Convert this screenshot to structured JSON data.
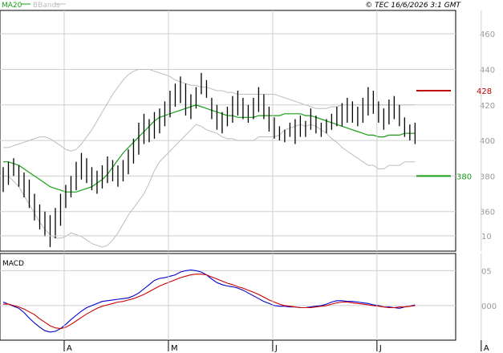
{
  "header": {
    "copyright": "© TEC 16/6/2026 3:1 GMT"
  },
  "legend": {
    "ma_label": "MA20",
    "bbands_label": "BBands",
    "macd_label": "MACD"
  },
  "colors": {
    "price": "#000000",
    "ma20": "#1a9e1a",
    "bbands": "#bdbdbd",
    "resistance": "#c00000",
    "support": "#1a9e1a",
    "macd": "#0000cc",
    "signal": "#cc0000",
    "grid": "#cfcfcf",
    "axis_text": "#9a9a9a"
  },
  "chart_data": [
    {
      "type": "ohlc",
      "title": "",
      "ylim": [
        340,
        470
      ],
      "y_ticks": [
        360,
        380,
        400,
        420,
        440,
        460
      ],
      "x_tick_labels": [
        "A",
        "M",
        "J",
        "J",
        "A"
      ],
      "x_tick_index": [
        12,
        32,
        52,
        72,
        92
      ],
      "levels": [
        {
          "name": "resistance",
          "value": 428,
          "label": "428"
        },
        {
          "name": "support",
          "value": 380,
          "label": "380"
        }
      ],
      "series": [
        {
          "name": "MA20",
          "values": [
            388,
            388,
            387,
            386,
            384,
            382,
            380,
            378,
            376,
            374,
            373,
            372,
            371,
            371,
            371,
            372,
            373,
            374,
            376,
            378,
            381,
            385,
            389,
            393,
            396,
            399,
            402,
            405,
            408,
            411,
            413,
            414,
            415,
            416,
            417,
            418,
            419,
            420,
            419,
            418,
            417,
            416,
            415,
            414,
            414,
            413,
            413,
            413,
            413,
            414,
            414,
            414,
            414,
            414,
            415,
            415,
            415,
            415,
            414,
            414,
            413,
            412,
            411,
            410,
            409,
            408,
            407,
            406,
            405,
            404,
            403,
            403,
            402,
            402,
            403,
            403,
            403,
            404,
            404,
            404
          ]
        },
        {
          "name": "BBands upper",
          "values": [
            396,
            396,
            397,
            398,
            399,
            400,
            401,
            402,
            402,
            401,
            399,
            397,
            395,
            394,
            395,
            398,
            402,
            406,
            411,
            416,
            421,
            426,
            430,
            434,
            437,
            439,
            440,
            440,
            440,
            439,
            438,
            437,
            436,
            434,
            433,
            432,
            431,
            431,
            430,
            430,
            429,
            428,
            428,
            427,
            427,
            426,
            426,
            426,
            426,
            426,
            426,
            426,
            426,
            425,
            424,
            423,
            422,
            421,
            420,
            419,
            418,
            418,
            418,
            419,
            419,
            420,
            420,
            420,
            420,
            420,
            420,
            420,
            420,
            420,
            420,
            420,
            420,
            420,
            420,
            420
          ]
        },
        {
          "name": "BBands lower",
          "values": [
            380,
            380,
            377,
            374,
            369,
            364,
            359,
            354,
            350,
            347,
            345,
            345,
            346,
            348,
            347,
            346,
            344,
            342,
            341,
            340,
            341,
            344,
            348,
            353,
            358,
            362,
            366,
            370,
            376,
            383,
            388,
            391,
            394,
            397,
            400,
            403,
            406,
            409,
            408,
            406,
            405,
            404,
            402,
            401,
            401,
            400,
            400,
            400,
            400,
            402,
            402,
            402,
            402,
            403,
            406,
            407,
            408,
            409,
            408,
            409,
            408,
            406,
            404,
            401,
            399,
            396,
            394,
            392,
            390,
            388,
            386,
            386,
            384,
            384,
            386,
            386,
            386,
            388,
            388,
            388
          ]
        }
      ],
      "ohlc": [
        {
          "x": 0,
          "h": 385,
          "l": 371
        },
        {
          "x": 1,
          "h": 388,
          "l": 375
        },
        {
          "x": 2,
          "h": 390,
          "l": 380
        },
        {
          "x": 3,
          "h": 386,
          "l": 374
        },
        {
          "x": 4,
          "h": 382,
          "l": 368
        },
        {
          "x": 5,
          "h": 378,
          "l": 362
        },
        {
          "x": 6,
          "h": 370,
          "l": 355
        },
        {
          "x": 7,
          "h": 364,
          "l": 350
        },
        {
          "x": 8,
          "h": 360,
          "l": 346
        },
        {
          "x": 9,
          "h": 358,
          "l": 340
        },
        {
          "x": 10,
          "h": 362,
          "l": 345
        },
        {
          "x": 11,
          "h": 370,
          "l": 352
        },
        {
          "x": 12,
          "h": 375,
          "l": 362
        },
        {
          "x": 13,
          "h": 380,
          "l": 368
        },
        {
          "x": 14,
          "h": 388,
          "l": 372
        },
        {
          "x": 15,
          "h": 393,
          "l": 378
        },
        {
          "x": 16,
          "h": 390,
          "l": 376
        },
        {
          "x": 17,
          "h": 385,
          "l": 372
        },
        {
          "x": 18,
          "h": 383,
          "l": 370
        },
        {
          "x": 19,
          "h": 386,
          "l": 373
        },
        {
          "x": 20,
          "h": 391,
          "l": 376
        },
        {
          "x": 21,
          "h": 389,
          "l": 377
        },
        {
          "x": 22,
          "h": 386,
          "l": 374
        },
        {
          "x": 23,
          "h": 389,
          "l": 377
        },
        {
          "x": 24,
          "h": 395,
          "l": 381
        },
        {
          "x": 25,
          "h": 401,
          "l": 387
        },
        {
          "x": 26,
          "h": 410,
          "l": 392
        },
        {
          "x": 27,
          "h": 415,
          "l": 398
        },
        {
          "x": 28,
          "h": 412,
          "l": 399
        },
        {
          "x": 29,
          "h": 416,
          "l": 401
        },
        {
          "x": 30,
          "h": 418,
          "l": 404
        },
        {
          "x": 31,
          "h": 422,
          "l": 408
        },
        {
          "x": 32,
          "h": 428,
          "l": 413
        },
        {
          "x": 33,
          "h": 432,
          "l": 419
        },
        {
          "x": 34,
          "h": 436,
          "l": 421
        },
        {
          "x": 35,
          "h": 432,
          "l": 414
        },
        {
          "x": 36,
          "h": 426,
          "l": 412
        },
        {
          "x": 37,
          "h": 430,
          "l": 418
        },
        {
          "x": 38,
          "h": 438,
          "l": 426
        },
        {
          "x": 39,
          "h": 434,
          "l": 424
        },
        {
          "x": 40,
          "h": 424,
          "l": 412
        },
        {
          "x": 41,
          "h": 420,
          "l": 406
        },
        {
          "x": 42,
          "h": 416,
          "l": 404
        },
        {
          "x": 43,
          "h": 419,
          "l": 408
        },
        {
          "x": 44,
          "h": 425,
          "l": 410
        },
        {
          "x": 45,
          "h": 428,
          "l": 414
        },
        {
          "x": 46,
          "h": 424,
          "l": 412
        },
        {
          "x": 47,
          "h": 420,
          "l": 410
        },
        {
          "x": 48,
          "h": 424,
          "l": 412
        },
        {
          "x": 49,
          "h": 430,
          "l": 416
        },
        {
          "x": 50,
          "h": 426,
          "l": 412
        },
        {
          "x": 51,
          "h": 419,
          "l": 405
        },
        {
          "x": 52,
          "h": 413,
          "l": 401
        },
        {
          "x": 53,
          "h": 408,
          "l": 400
        },
        {
          "x": 54,
          "h": 406,
          "l": 399
        },
        {
          "x": 55,
          "h": 410,
          "l": 402
        },
        {
          "x": 56,
          "h": 412,
          "l": 398
        },
        {
          "x": 57,
          "h": 414,
          "l": 402
        },
        {
          "x": 58,
          "h": 411,
          "l": 402
        },
        {
          "x": 59,
          "h": 418,
          "l": 406
        },
        {
          "x": 60,
          "h": 414,
          "l": 404
        },
        {
          "x": 61,
          "h": 410,
          "l": 402
        },
        {
          "x": 62,
          "h": 412,
          "l": 404
        },
        {
          "x": 63,
          "h": 415,
          "l": 406
        },
        {
          "x": 64,
          "h": 419,
          "l": 408
        },
        {
          "x": 65,
          "h": 421,
          "l": 408
        },
        {
          "x": 66,
          "h": 424,
          "l": 410
        },
        {
          "x": 67,
          "h": 422,
          "l": 410
        },
        {
          "x": 68,
          "h": 419,
          "l": 408
        },
        {
          "x": 69,
          "h": 424,
          "l": 410
        },
        {
          "x": 70,
          "h": 430,
          "l": 414
        },
        {
          "x": 71,
          "h": 428,
          "l": 415
        },
        {
          "x": 72,
          "h": 422,
          "l": 410
        },
        {
          "x": 73,
          "h": 418,
          "l": 406
        },
        {
          "x": 74,
          "h": 423,
          "l": 409
        },
        {
          "x": 75,
          "h": 425,
          "l": 412
        },
        {
          "x": 76,
          "h": 420,
          "l": 408
        },
        {
          "x": 77,
          "h": 413,
          "l": 402
        },
        {
          "x": 78,
          "h": 409,
          "l": 400
        },
        {
          "x": 79,
          "h": 410,
          "l": 398
        }
      ]
    },
    {
      "type": "line",
      "title": "MACD",
      "ylim": [
        -0.45,
        0.7
      ],
      "y_ticks": [
        0,
        0.5,
        1
      ],
      "y_tick_labels": [
        "000",
        "05",
        "10"
      ],
      "series": [
        {
          "name": "MACD",
          "values": [
            0.05,
            0.02,
            -0.01,
            -0.04,
            -0.1,
            -0.18,
            -0.25,
            -0.31,
            -0.36,
            -0.38,
            -0.37,
            -0.33,
            -0.27,
            -0.2,
            -0.14,
            -0.08,
            -0.03,
            0.0,
            0.03,
            0.06,
            0.07,
            0.08,
            0.09,
            0.1,
            0.11,
            0.14,
            0.18,
            0.24,
            0.3,
            0.36,
            0.39,
            0.4,
            0.42,
            0.44,
            0.48,
            0.5,
            0.51,
            0.5,
            0.48,
            0.44,
            0.38,
            0.33,
            0.3,
            0.28,
            0.27,
            0.25,
            0.22,
            0.18,
            0.14,
            0.1,
            0.06,
            0.03,
            0.0,
            -0.01,
            -0.01,
            -0.02,
            -0.02,
            -0.03,
            -0.03,
            -0.02,
            -0.01,
            0.0,
            0.02,
            0.05,
            0.07,
            0.07,
            0.06,
            0.06,
            0.05,
            0.04,
            0.03,
            0.01,
            0.0,
            -0.02,
            -0.02,
            -0.03,
            -0.04,
            -0.02,
            -0.01,
            0.01
          ]
        },
        {
          "name": "Signal",
          "values": [
            0.02,
            0.02,
            0.0,
            -0.02,
            -0.05,
            -0.09,
            -0.13,
            -0.19,
            -0.24,
            -0.29,
            -0.32,
            -0.33,
            -0.31,
            -0.27,
            -0.22,
            -0.17,
            -0.12,
            -0.08,
            -0.04,
            -0.01,
            0.01,
            0.03,
            0.05,
            0.06,
            0.08,
            0.1,
            0.13,
            0.16,
            0.2,
            0.24,
            0.28,
            0.31,
            0.34,
            0.37,
            0.4,
            0.42,
            0.44,
            0.45,
            0.45,
            0.44,
            0.41,
            0.38,
            0.35,
            0.32,
            0.3,
            0.27,
            0.25,
            0.22,
            0.19,
            0.16,
            0.12,
            0.08,
            0.05,
            0.02,
            0.0,
            -0.01,
            -0.02,
            -0.03,
            -0.03,
            -0.03,
            -0.02,
            -0.01,
            0.0,
            0.02,
            0.04,
            0.05,
            0.05,
            0.04,
            0.03,
            0.02,
            0.01,
            0.0,
            -0.01,
            -0.02,
            -0.03,
            -0.03,
            -0.02,
            -0.02,
            -0.01,
            0.0
          ]
        }
      ]
    }
  ]
}
